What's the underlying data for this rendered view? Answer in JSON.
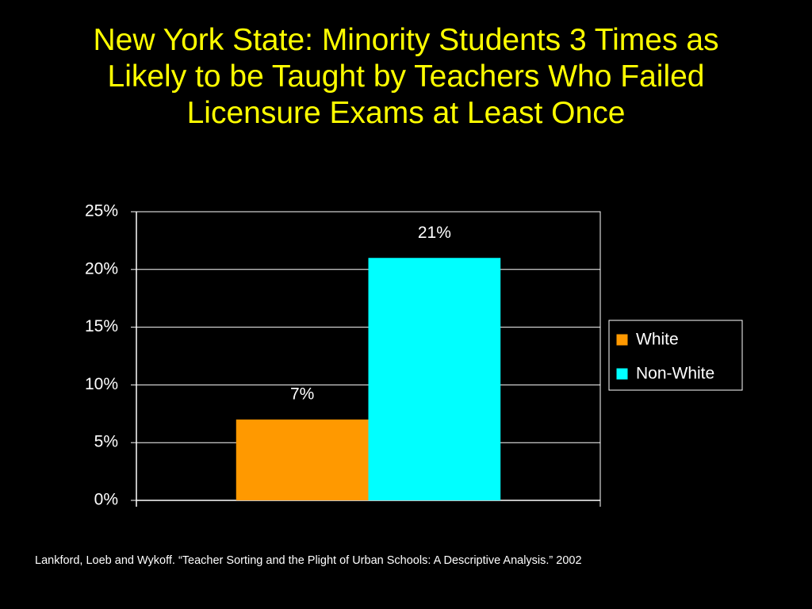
{
  "chart_data": {
    "type": "bar",
    "title": "New York State:  Minority Students 3 Times as Likely to be Taught by Teachers Who Failed Licensure Exams at Least Once",
    "categories": [
      null
    ],
    "series": [
      {
        "name": "White",
        "color": "#ff9900",
        "values": [
          7
        ],
        "value_labels": [
          "7%"
        ]
      },
      {
        "name": "Non-White",
        "color": "#00ffff",
        "values": [
          21
        ],
        "value_labels": [
          "21%"
        ]
      }
    ],
    "ylim": [
      0,
      25
    ],
    "yticks": [
      {
        "value": 0,
        "label": "0%"
      },
      {
        "value": 5,
        "label": "5%"
      },
      {
        "value": 10,
        "label": "10%"
      },
      {
        "value": 15,
        "label": "15%"
      },
      {
        "value": 20,
        "label": "20%"
      },
      {
        "value": 25,
        "label": "25%"
      }
    ],
    "grid": true,
    "legend": "right",
    "source": "Lankford, Loeb and Wykoff.  “Teacher Sorting and the Plight of Urban Schools:  A Descriptive Analysis.” 2002"
  }
}
